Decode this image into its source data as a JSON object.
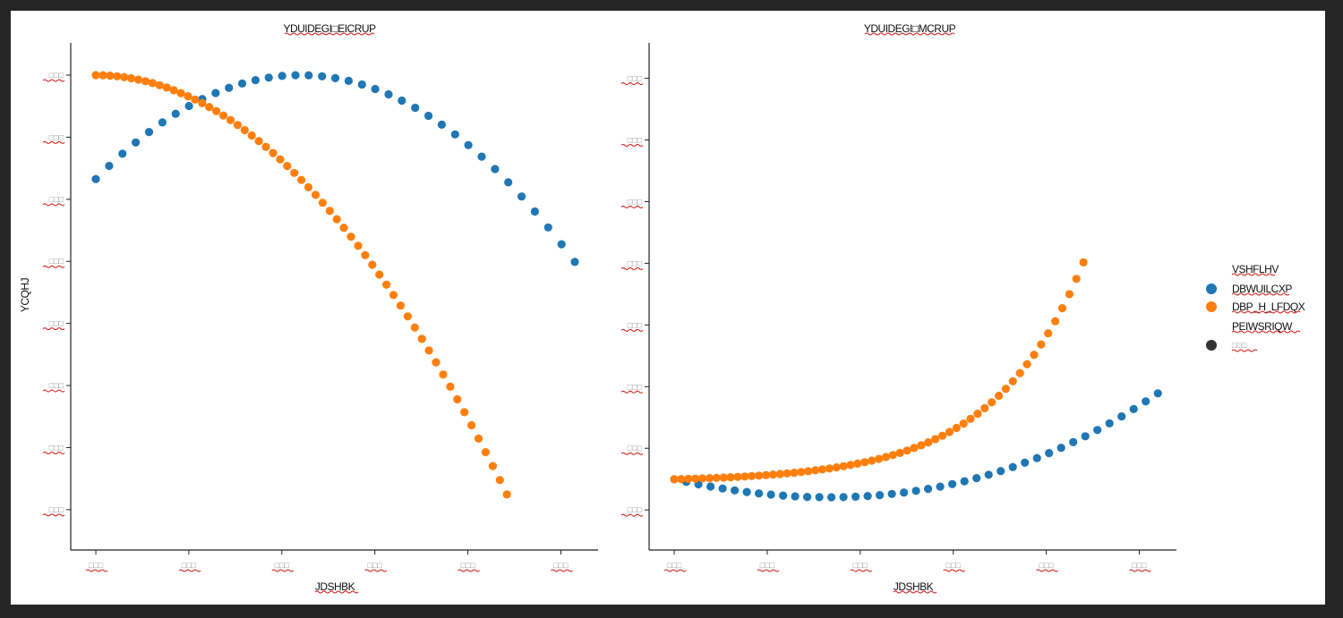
{
  "colors": {
    "series_a": "#1f77b4",
    "series_b": "#ff7f0e",
    "marker_black": "#333333",
    "background": "#ffffff",
    "frame": "#262626"
  },
  "legend": {
    "title": "VSHFLHV",
    "items": [
      {
        "label": "DBWUILCXP",
        "color": "#1f77b4"
      },
      {
        "label": "DBP_H_LFDQX",
        "color": "#ff7f0e"
      }
    ],
    "extra_title": "PEIWSRIQW",
    "extra_items": [
      {
        "label": "□□□",
        "color": "#333333"
      }
    ]
  },
  "chart_data": [
    {
      "type": "scatter",
      "title": "YDUIDEGI□EICRUP",
      "xlabel": "JDSHBK",
      "ylabel": "YCQHJ",
      "xticks": [
        "□□□",
        "□□□",
        "□□□",
        "□□□",
        "□□□",
        "□□□"
      ],
      "yticks": [
        "□□□",
        "□□□",
        "□□□",
        "□□□",
        "□□□",
        "□□□",
        "□□□",
        "□□□"
      ],
      "xlim": [
        -0.27,
        5.4
      ],
      "ylim": [
        -8.85,
        0.6
      ],
      "series": [
        {
          "name": "DBWUILCXP",
          "color": "#1f77b4",
          "x_start": 0,
          "x_end": 5.15,
          "n": 37,
          "formula": "quad_a"
        },
        {
          "name": "DBP_H_LFDQX",
          "color": "#ff7f0e",
          "x_start": 0,
          "x_end": 4.42,
          "n": 59,
          "formula": "quad_b"
        }
      ]
    },
    {
      "type": "scatter",
      "title": "YDUIDEGI□MCRUP",
      "xlabel": "JDSHBK",
      "ylabel": "",
      "xticks": [
        "□□□",
        "□□□",
        "□□□",
        "□□□",
        "□□□",
        "□□□"
      ],
      "yticks": [
        "□□□",
        "□□□",
        "□□□",
        "□□□",
        "□□□",
        "□□□",
        "□□□",
        "□□□"
      ],
      "xlim": [
        -0.27,
        5.4
      ],
      "ylim": [
        -1.2,
        7.4
      ],
      "series": [
        {
          "name": "DBWUILCXP",
          "color": "#1f77b4",
          "x_start": 0,
          "x_end": 5.2,
          "n": 41,
          "formula": "cub_a"
        },
        {
          "name": "DBP_H_LFDQX",
          "color": "#ff7f0e",
          "x_start": 0,
          "x_end": 4.4,
          "n": 59,
          "formula": "exp_b"
        }
      ]
    }
  ]
}
